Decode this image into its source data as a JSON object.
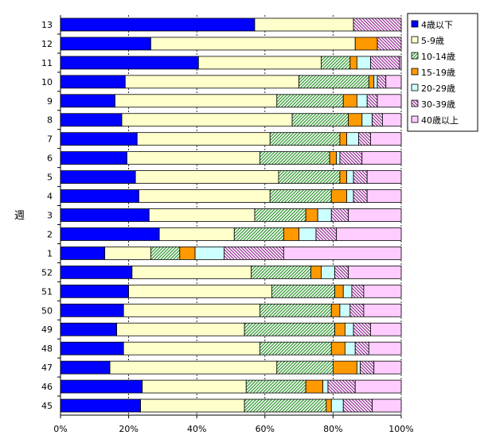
{
  "chart_data": {
    "type": "bar",
    "orientation": "horizontal",
    "stacked": "percent",
    "ylabel": "週",
    "xlabel": "",
    "title": "",
    "xlim": [
      0,
      100
    ],
    "x_ticks": [
      "0%",
      "20%",
      "40%",
      "60%",
      "80%",
      "100%"
    ],
    "grid": true,
    "legend_position": "right",
    "categories": [
      "13",
      "12",
      "11",
      "10",
      "9",
      "8",
      "7",
      "6",
      "5",
      "4",
      "3",
      "2",
      "1",
      "52",
      "51",
      "50",
      "49",
      "48",
      "47",
      "46",
      "45"
    ],
    "series": [
      {
        "name": "4歳以下",
        "color": "#0000ff",
        "pattern": "solid",
        "values": [
          57.0,
          26.5,
          40.5,
          19.0,
          16.0,
          18.0,
          22.5,
          19.5,
          22.0,
          23.0,
          26.0,
          29.0,
          13.0,
          21.0,
          20.0,
          18.5,
          16.5,
          18.5,
          14.5,
          24.0,
          23.5
        ]
      },
      {
        "name": "5-9歳",
        "color": "#ffffcc",
        "pattern": "solid",
        "values": [
          29.0,
          60.0,
          36.0,
          51.0,
          47.5,
          50.0,
          39.0,
          39.0,
          42.0,
          38.5,
          31.0,
          22.0,
          13.5,
          35.0,
          42.0,
          40.0,
          37.5,
          40.0,
          49.0,
          30.5,
          30.5
        ]
      },
      {
        "name": "10-14歳",
        "color": "#339933",
        "pattern": "diagonal",
        "values": [
          0.0,
          0.0,
          8.5,
          20.5,
          19.5,
          16.5,
          20.5,
          20.5,
          18.0,
          18.0,
          15.0,
          14.5,
          8.5,
          17.5,
          18.5,
          21.0,
          26.5,
          21.0,
          16.5,
          17.5,
          24.0
        ]
      },
      {
        "name": "15-19歳",
        "color": "#ff9900",
        "pattern": "solid",
        "values": [
          0.0,
          6.5,
          2.0,
          1.5,
          4.0,
          4.0,
          2.0,
          2.0,
          2.0,
          4.5,
          3.5,
          4.5,
          4.5,
          3.0,
          2.5,
          2.5,
          3.0,
          4.0,
          7.0,
          5.0,
          1.5
        ]
      },
      {
        "name": "20-29歳",
        "color": "#ccffff",
        "pattern": "solid",
        "values": [
          0.0,
          0.0,
          4.0,
          1.0,
          3.0,
          3.0,
          3.5,
          1.0,
          2.0,
          2.0,
          4.0,
          5.0,
          8.5,
          4.0,
          2.5,
          3.0,
          2.5,
          3.0,
          1.0,
          1.5,
          3.5
        ]
      },
      {
        "name": "30-39歳",
        "color": "#993399",
        "pattern": "diagonal",
        "values": [
          14.0,
          7.0,
          8.5,
          2.5,
          3.0,
          3.0,
          3.5,
          6.5,
          4.0,
          4.0,
          5.0,
          6.0,
          17.5,
          4.0,
          3.5,
          4.0,
          5.0,
          4.0,
          4.0,
          8.0,
          8.5
        ]
      },
      {
        "name": "40歳以上",
        "color": "#ffccff",
        "pattern": "solid",
        "values": [
          0.0,
          0.0,
          0.5,
          4.5,
          7.0,
          5.5,
          9.0,
          11.5,
          10.0,
          10.0,
          15.5,
          19.0,
          34.5,
          15.5,
          11.0,
          11.0,
          9.0,
          9.5,
          8.0,
          13.5,
          8.5
        ]
      }
    ]
  }
}
